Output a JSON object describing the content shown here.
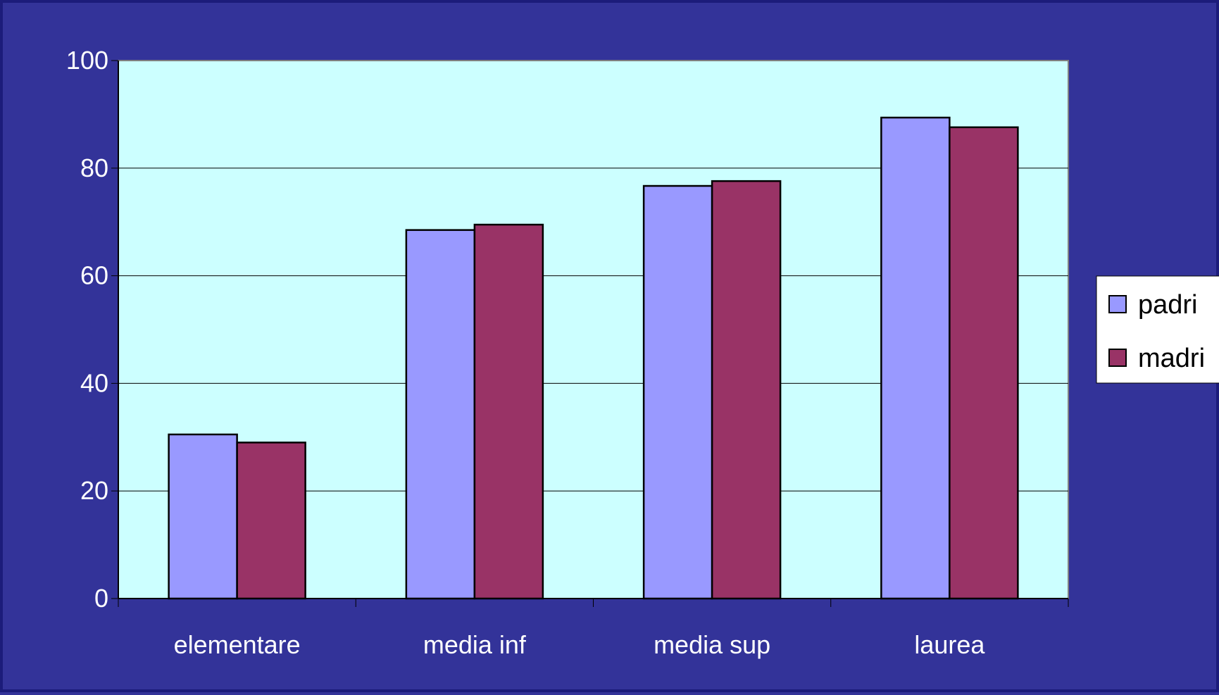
{
  "chart_data": {
    "type": "bar",
    "title": "",
    "xlabel": "",
    "ylabel": "",
    "categories": [
      "elementare",
      "media inf",
      "media sup",
      "laurea"
    ],
    "series": [
      {
        "name": "padri",
        "values": [
          30.5,
          68.5,
          76.7,
          89.4
        ],
        "color": "#9999ff"
      },
      {
        "name": "madri",
        "values": [
          29.0,
          69.5,
          77.6,
          87.6
        ],
        "color": "#993366"
      }
    ],
    "ylim": [
      0,
      100
    ],
    "yticks": [
      0,
      20,
      40,
      60,
      80,
      100
    ],
    "grid": true,
    "legend_position": "right",
    "colors": {
      "background": "#333399",
      "plot_area": "#ccffff",
      "text": "#ffffff",
      "gridline": "#000000"
    }
  }
}
